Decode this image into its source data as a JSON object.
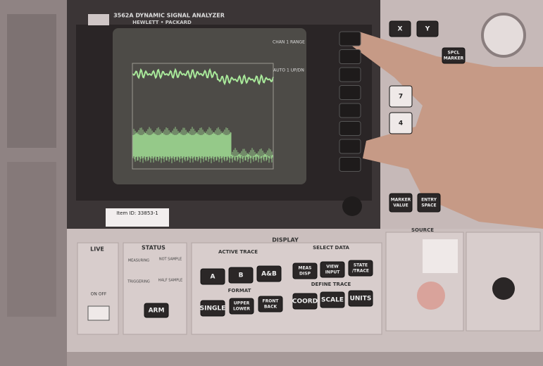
{
  "header": {
    "model": "3562A DYNAMIC SIGNAL ANALYZER",
    "brand": "HEWLETT • PACKARD"
  },
  "screen": {
    "softkeys": [
      "CHAN 1 RANGE",
      "AUTO 1 UP/DN"
    ]
  },
  "asset_label": "Item ID: 33853-1",
  "right_panel": {
    "keys": [
      [
        "X"
      ],
      [
        "Y"
      ],
      [
        "SPCL",
        "MARKER"
      ],
      [
        "7"
      ],
      [
        "4"
      ],
      [
        "MARKER",
        "VALUE"
      ],
      [
        "ENTRY",
        "SPACE"
      ]
    ]
  },
  "front_panel": {
    "live": {
      "title": "LIVE",
      "switch": "ON OFF"
    },
    "status": {
      "title": "STATUS",
      "indicators": [
        "MEASURING",
        "NOT SAMPLE",
        "TRIGGERING",
        "HALF SAMPLE"
      ],
      "button": [
        "ARM"
      ]
    },
    "display": {
      "title": "DISPLAY",
      "active_trace": {
        "title": "ACTIVE TRACE",
        "buttons": [
          [
            "A"
          ],
          [
            "B"
          ],
          [
            "A&B"
          ]
        ]
      },
      "format": {
        "title": "FORMAT",
        "buttons": [
          [
            "SINGLE"
          ],
          [
            "UPPER",
            "LOWER"
          ],
          [
            "FRONT",
            "BACK"
          ]
        ]
      },
      "select_data": {
        "title": "SELECT DATA",
        "buttons": [
          [
            "MEAS",
            "DISP"
          ],
          [
            "VIEW",
            "INPUT"
          ],
          [
            "STATE",
            "/TRACE"
          ]
        ]
      },
      "define_trace": {
        "title": "DEFINE TRACE",
        "buttons": [
          [
            "COORD"
          ],
          [
            "SCALE"
          ],
          [
            "UNITS"
          ]
        ]
      }
    },
    "source": {
      "title": "SOURCE"
    }
  }
}
